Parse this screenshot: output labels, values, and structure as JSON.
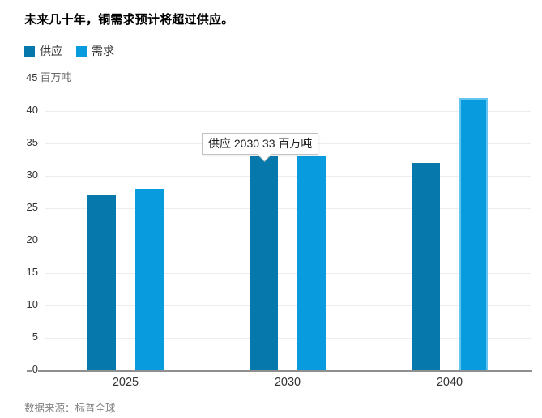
{
  "title": "未来几十年，铜需求预计将超过供应。",
  "legend": {
    "items": [
      {
        "label": "供应",
        "color": "#0778ab"
      },
      {
        "label": "需求",
        "color": "#089bdd"
      }
    ]
  },
  "y_axis": {
    "unit": "百万吨",
    "ticks": [
      45,
      40,
      35,
      30,
      25,
      20,
      15,
      10,
      5,
      0
    ]
  },
  "x_axis": {
    "labels": [
      "2025",
      "2030",
      "2040"
    ]
  },
  "tooltip": {
    "text": "供应 2030 33 百万吨"
  },
  "source": "数据来源：标普全球",
  "colors": {
    "supply": "#0778ab",
    "demand": "#089bdd",
    "highlight_border": "#62c4ef",
    "grid": "#ededed",
    "axis": "#8f8f8f"
  },
  "chart_data": {
    "type": "bar",
    "categories": [
      "2025",
      "2030",
      "2040"
    ],
    "series": [
      {
        "name": "供应",
        "color": "#0778ab",
        "values": [
          27,
          33,
          32
        ]
      },
      {
        "name": "需求",
        "color": "#089bdd",
        "values": [
          28,
          33,
          42
        ]
      }
    ],
    "title": "未来几十年，铜需求预计将超过供应。",
    "xlabel": "",
    "ylabel": "百万吨",
    "ylim": [
      0,
      45
    ],
    "grid": true,
    "legend_position": "top-left",
    "tooltip": {
      "series": "供应",
      "category": "2030",
      "value": 33,
      "unit": "百万吨"
    },
    "highlight": {
      "series": "需求",
      "category": "2040"
    }
  }
}
